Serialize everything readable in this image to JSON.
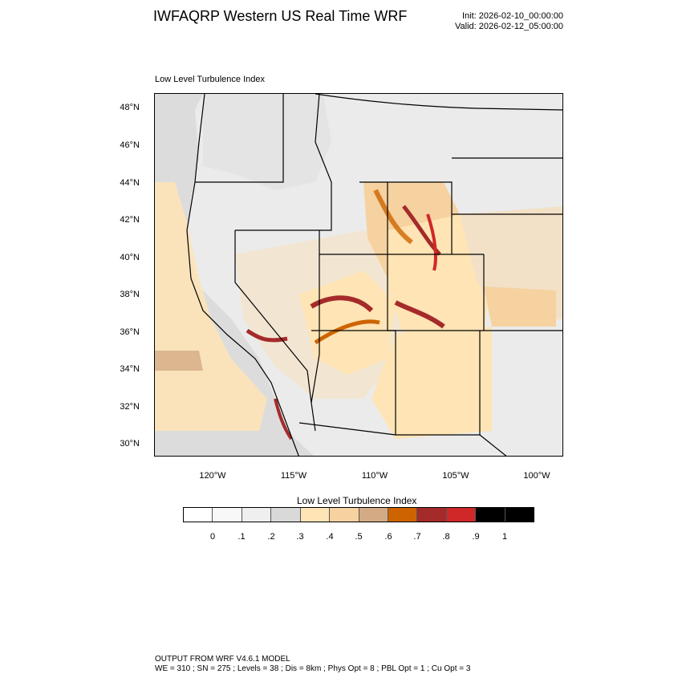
{
  "header": {
    "title": "IWFAQRP Western US Real Time WRF",
    "init": "Init: 2026-02-10_00:00:00",
    "valid": "Valid: 2026-02-12_05:00:00"
  },
  "panel": {
    "title": "Low Level Turbulence Index"
  },
  "map": {
    "lat_labels": [
      "48°N",
      "46°N",
      "44°N",
      "42°N",
      "40°N",
      "38°N",
      "36°N",
      "34°N",
      "32°N",
      "30°N"
    ],
    "lon_labels": [
      "120°W",
      "115°W",
      "110°W",
      "105°W",
      "100°W"
    ],
    "colors": {
      "land_low": "#dedede",
      "land_mid": "#ececec",
      "ocean": "#dcdcdc",
      "level_5": "#ffe4b5",
      "level_6": "#f5d2a0",
      "level_7": "#d3aa84",
      "level_8": "#cd6400",
      "level_9": "#a52a2a",
      "level_10": "#d02828",
      "borders": "#000000"
    }
  },
  "colorbar": {
    "title": "Low Level Turbulence Index",
    "colors": [
      "#ffffff",
      "#f8f8f8",
      "#efefef",
      "#d9d9d9",
      "#ffe4b5",
      "#f5d2a0",
      "#d3aa84",
      "#cd6400",
      "#a52a2a",
      "#d02828",
      "#000000"
    ],
    "labels": [
      "0",
      ".1",
      ".2",
      ".3",
      ".4",
      ".5",
      ".6",
      ".7",
      ".8",
      ".9",
      "1"
    ]
  },
  "footer": {
    "line1": "OUTPUT FROM WRF V4.6.1 MODEL",
    "line2": "WE = 310 ; SN = 275 ; Levels = 38 ; Dis = 8km ; Phys Opt = 8 ; PBL Opt = 1 ; Cu Opt = 3"
  }
}
